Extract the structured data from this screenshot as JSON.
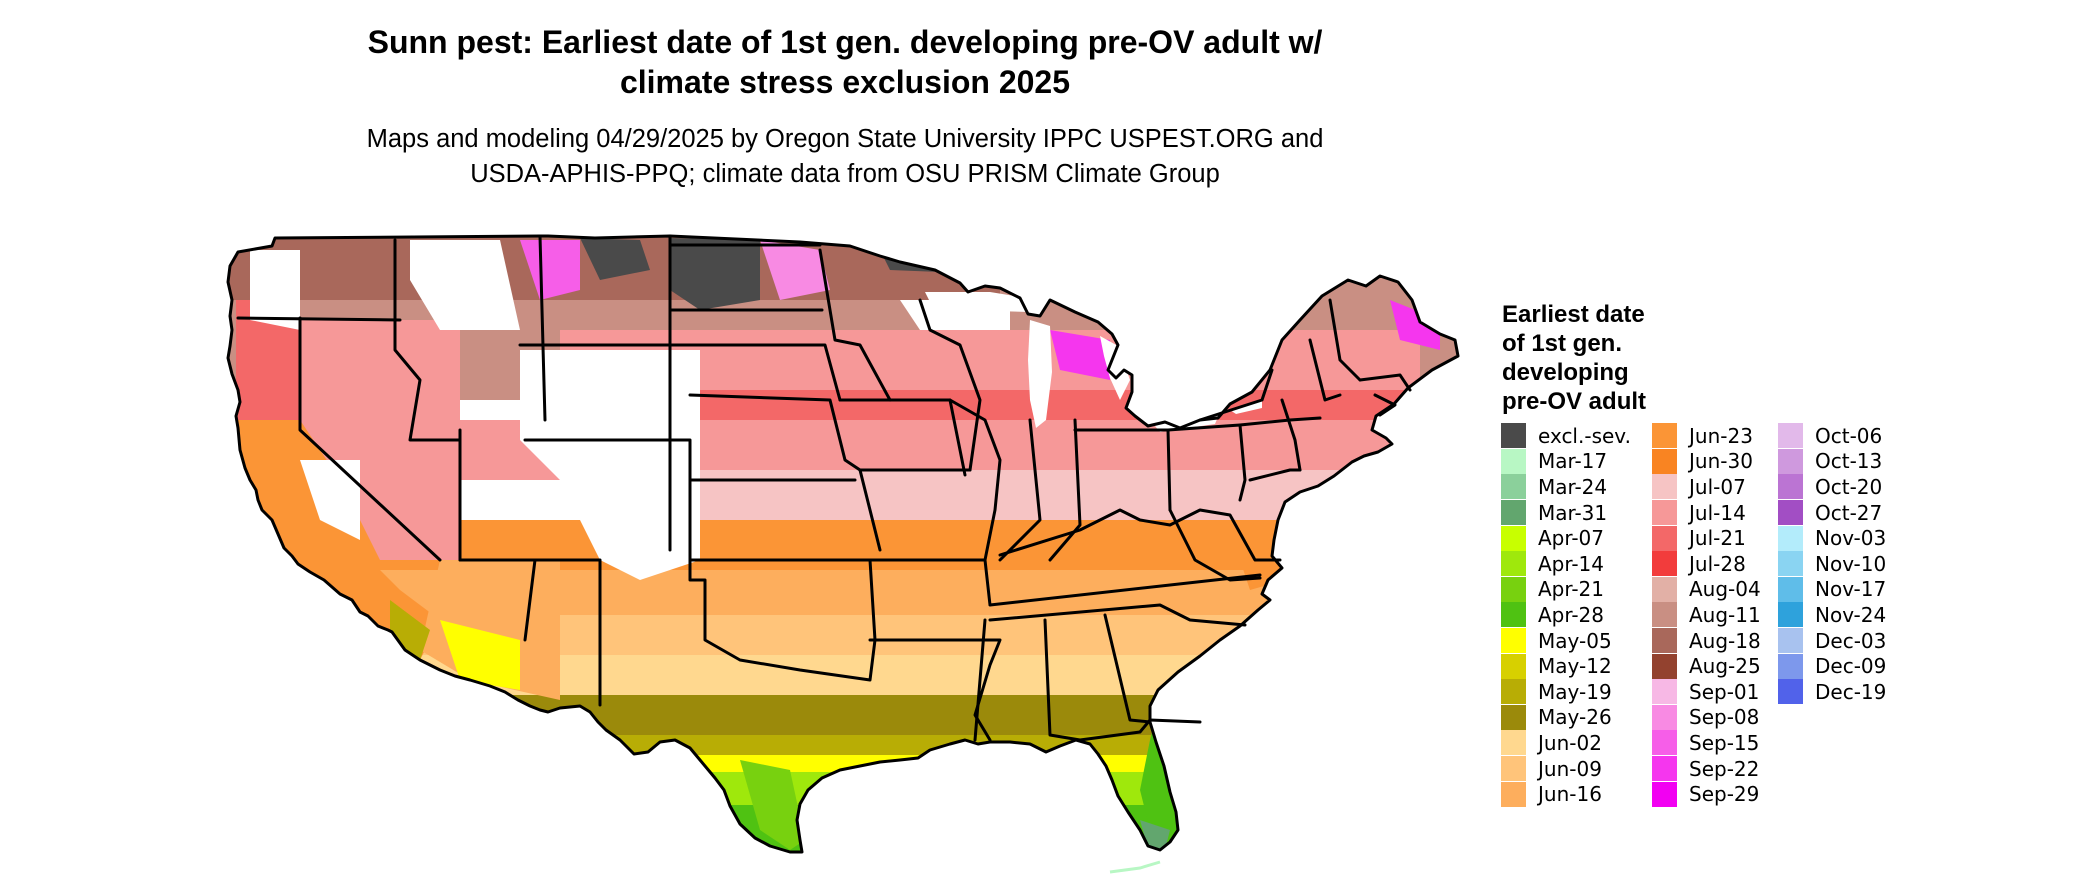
{
  "header": {
    "title_line1": "Sunn pest: Earliest date of 1st gen. developing pre-OV adult w/",
    "title_line2": "climate stress exclusion 2025",
    "subtitle_line1": "Maps and modeling 04/29/2025 by Oregon State University IPPC USPEST.ORG and",
    "subtitle_line2": "USDA-APHIS-PPQ; climate data from OSU PRISM Climate Group"
  },
  "legend": {
    "title_lines": [
      "Earliest date",
      "of 1st gen.",
      "developing",
      "pre-OV adult"
    ],
    "columns": [
      [
        {
          "label": "excl.-sev.",
          "color": "#4a4a4a"
        },
        {
          "label": "Mar-17",
          "color": "#b8f7c4"
        },
        {
          "label": "Mar-24",
          "color": "#8bd09b"
        },
        {
          "label": "Mar-31",
          "color": "#62a66e"
        },
        {
          "label": "Apr-07",
          "color": "#c8ff00"
        },
        {
          "label": "Apr-14",
          "color": "#9fe80c"
        },
        {
          "label": "Apr-21",
          "color": "#78d10f"
        },
        {
          "label": "Apr-28",
          "color": "#4fc212"
        },
        {
          "label": "May-05",
          "color": "#ffff00"
        },
        {
          "label": "May-12",
          "color": "#d7d000"
        },
        {
          "label": "May-19",
          "color": "#b8ad05"
        },
        {
          "label": "May-26",
          "color": "#9b8a0b"
        },
        {
          "label": "Jun-02",
          "color": "#ffd88f"
        },
        {
          "label": "Jun-09",
          "color": "#ffc47a"
        },
        {
          "label": "Jun-16",
          "color": "#fdae5d"
        }
      ],
      [
        {
          "label": "Jun-23",
          "color": "#fb9536"
        },
        {
          "label": "Jun-30",
          "color": "#f98422"
        },
        {
          "label": "Jul-07",
          "color": "#f6c4c4"
        },
        {
          "label": "Jul-14",
          "color": "#f69898"
        },
        {
          "label": "Jul-21",
          "color": "#f36868"
        },
        {
          "label": "Jul-28",
          "color": "#f23c3c"
        },
        {
          "label": "Aug-04",
          "color": "#e2b0a6"
        },
        {
          "label": "Aug-11",
          "color": "#c98f83"
        },
        {
          "label": "Aug-18",
          "color": "#a9685b"
        },
        {
          "label": "Aug-25",
          "color": "#93422f"
        },
        {
          "label": "Sep-01",
          "color": "#f7b8e5"
        },
        {
          "label": "Sep-08",
          "color": "#f88ae3"
        },
        {
          "label": "Sep-15",
          "color": "#f65ee8"
        },
        {
          "label": "Sep-22",
          "color": "#f536ee"
        },
        {
          "label": "Sep-29",
          "color": "#f200f2"
        }
      ],
      [
        {
          "label": "Oct-06",
          "color": "#e2b9ea"
        },
        {
          "label": "Oct-13",
          "color": "#cf99de"
        },
        {
          "label": "Oct-20",
          "color": "#bb74d3"
        },
        {
          "label": "Oct-27",
          "color": "#a24ec4"
        },
        {
          "label": "Nov-03",
          "color": "#b3ecfb"
        },
        {
          "label": "Nov-10",
          "color": "#8ad4f2"
        },
        {
          "label": "Nov-17",
          "color": "#5fbde9"
        },
        {
          "label": "Nov-24",
          "color": "#2ea2dc"
        },
        {
          "label": "Dec-03",
          "color": "#a8c2ef"
        },
        {
          "label": "Dec-09",
          "color": "#7d98ec"
        },
        {
          "label": "Dec-19",
          "color": "#5162ea"
        }
      ]
    ]
  },
  "map_colors": {
    "outline": "#000000",
    "no_data": "#ffffff"
  }
}
